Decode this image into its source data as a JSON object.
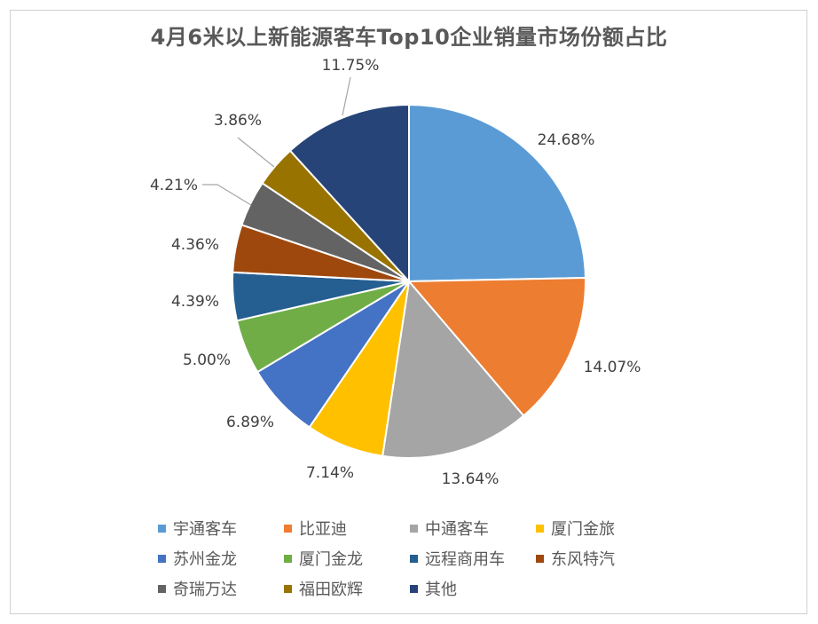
{
  "chart_data": {
    "type": "pie",
    "title": "4月6米以上新能源客车Top10企业销量市场份额占比",
    "categories": [
      "宇通客车",
      "比亚迪",
      "中通客车",
      "厦门金旅",
      "苏州金龙",
      "厦门金龙",
      "远程商用车",
      "东风特汽",
      "奇瑞万达",
      "福田欧辉",
      "其他"
    ],
    "values": [
      24.68,
      14.07,
      13.64,
      7.14,
      6.89,
      5.0,
      4.39,
      4.36,
      4.21,
      3.86,
      11.75
    ],
    "labels": [
      "24.68%",
      "14.07%",
      "13.64%",
      "7.14%",
      "6.89%",
      "5.00%",
      "4.39%",
      "4.36%",
      "4.21%",
      "3.86%",
      "11.75%"
    ],
    "colors": [
      "#5B9BD5",
      "#ED7D31",
      "#A5A5A5",
      "#FFC000",
      "#4472C4",
      "#70AD47",
      "#255E91",
      "#9E480E",
      "#636363",
      "#997300",
      "#264478"
    ],
    "legend_position": "bottom"
  }
}
